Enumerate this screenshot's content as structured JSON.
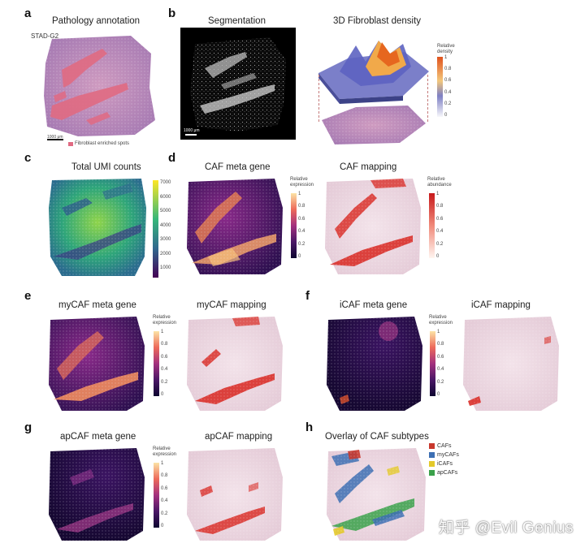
{
  "panels": {
    "a": {
      "letter": "a",
      "title": "Pathology annotation",
      "sample": "STAD-G2",
      "scalebar": "1000 μm",
      "legend": "Fibroblast enriched spots"
    },
    "b": {
      "letter": "b",
      "title_left": "Segmentation",
      "title_right": "3D Fibroblast density",
      "scalebar": "1000 μm",
      "cbar_label": "Relative density",
      "ticks": [
        "1",
        "0.8",
        "0.6",
        "0.4",
        "0.2",
        "0"
      ]
    },
    "c": {
      "letter": "c",
      "title": "Total UMI counts",
      "ticks": [
        "7000",
        "6000",
        "5000",
        "4000",
        "3000",
        "2000",
        "1000"
      ]
    },
    "d": {
      "letter": "d",
      "title_left": "CAF meta gene",
      "title_right": "CAF mapping",
      "cbar_label_left": "Relative expression",
      "cbar_label_right": "Relative abundance",
      "ticks": [
        "1",
        "0.8",
        "0.6",
        "0.4",
        "0.2",
        "0"
      ]
    },
    "e": {
      "letter": "e",
      "title_left": "myCAF meta gene",
      "title_right": "myCAF mapping",
      "cbar_label": "Relative expression",
      "ticks": [
        "1",
        "0.8",
        "0.6",
        "0.4",
        "0.2",
        "0"
      ]
    },
    "f": {
      "letter": "f",
      "title_left": "iCAF meta gene",
      "title_right": "iCAF mapping",
      "cbar_label": "Relative expression",
      "ticks": [
        "1",
        "0.8",
        "0.6",
        "0.4",
        "0.2",
        "0"
      ]
    },
    "g": {
      "letter": "g",
      "title_left": "apCAF meta gene",
      "title_right": "apCAF mapping",
      "cbar_label": "Relative expression",
      "ticks": [
        "1",
        "0.8",
        "0.6",
        "0.4",
        "0.2",
        "0"
      ]
    },
    "h": {
      "letter": "h",
      "title": "Overlay of CAF subtypes",
      "legend": [
        {
          "label": "CAFs",
          "color": "#c8382d"
        },
        {
          "label": "myCAFs",
          "color": "#3d6fb3"
        },
        {
          "label": "iCAFs",
          "color": "#e3c92a"
        },
        {
          "label": "apCAFs",
          "color": "#3aa14a"
        }
      ]
    }
  },
  "colors": {
    "pink": "#e8a0b0",
    "red": "#d9302a",
    "plasma_lo": "#1c0f3c",
    "plasma_hi": "#f8d89a",
    "viridis_lo": "#3b1f5e",
    "viridis_hi": "#e6e31f"
  },
  "watermark": "知乎 @Evil Genius"
}
